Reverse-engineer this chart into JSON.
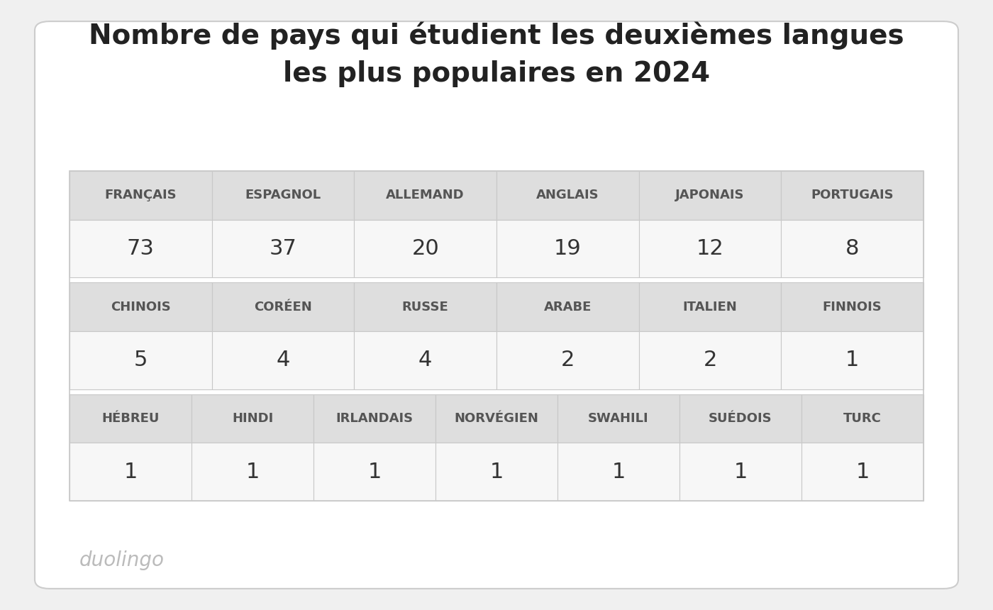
{
  "title_line1": "Nombre de pays qui étudient les deuxièmes langues",
  "title_line2": "les plus populaires en 2024",
  "title_fontsize": 28,
  "title_color": "#222222",
  "watermark": "duolingo",
  "watermark_color": "#bbbbbb",
  "watermark_fontsize": 20,
  "background_color": "#f0f0f0",
  "card_background": "#ffffff",
  "card_edge_color": "#cccccc",
  "header_bg_color": "#dedede",
  "value_bg_color": "#f7f7f7",
  "header_text_color": "#555555",
  "value_text_color": "#333333",
  "header_fontsize": 13,
  "value_fontsize": 22,
  "rows": [
    {
      "headers": [
        "FRANÇAIS",
        "ESPAGNOL",
        "ALLEMAND",
        "ANGLAIS",
        "JAPONAIS",
        "PORTUGAIS"
      ],
      "values": [
        "73",
        "37",
        "20",
        "19",
        "12",
        "8"
      ],
      "ncols": 6
    },
    {
      "headers": [
        "CHINOIS",
        "CORÉEN",
        "RUSSE",
        "ARABE",
        "ITALIEN",
        "FINNOIS"
      ],
      "values": [
        "5",
        "4",
        "4",
        "2",
        "2",
        "1"
      ],
      "ncols": 6
    },
    {
      "headers": [
        "HÉBREU",
        "HINDI",
        "IRLANDAIS",
        "NORVÉGIEN",
        "SWAHILI",
        "SUÉDOIS",
        "TURC"
      ],
      "values": [
        "1",
        "1",
        "1",
        "1",
        "1",
        "1",
        "1"
      ],
      "ncols": 7
    }
  ]
}
